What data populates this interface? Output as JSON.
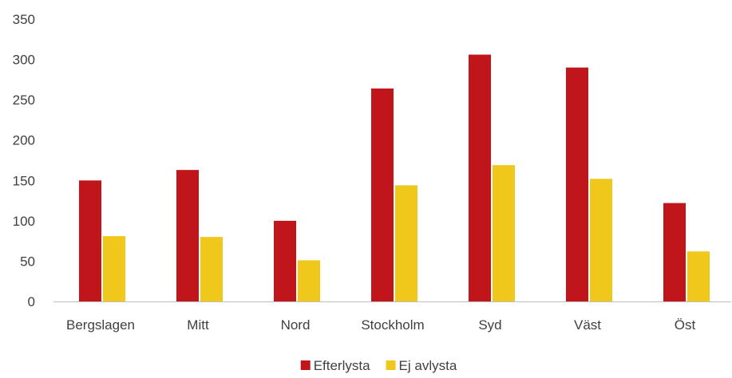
{
  "chart_data": {
    "type": "bar",
    "categories": [
      "Bergslagen",
      "Mitt",
      "Nord",
      "Stockholm",
      "Syd",
      "Väst",
      "Öst"
    ],
    "series": [
      {
        "name": "Efterlysta",
        "color": "#C0161B",
        "values": [
          150,
          163,
          100,
          264,
          306,
          290,
          122
        ]
      },
      {
        "name": "Ej avlysta",
        "color": "#EFC81B",
        "values": [
          81,
          80,
          51,
          144,
          169,
          152,
          62
        ]
      }
    ],
    "ylim": [
      0,
      350
    ],
    "yticks": [
      0,
      50,
      100,
      150,
      200,
      250,
      300,
      350
    ],
    "grid": false,
    "legend": "bottom-center",
    "axis_color": "#bfbfbf"
  }
}
